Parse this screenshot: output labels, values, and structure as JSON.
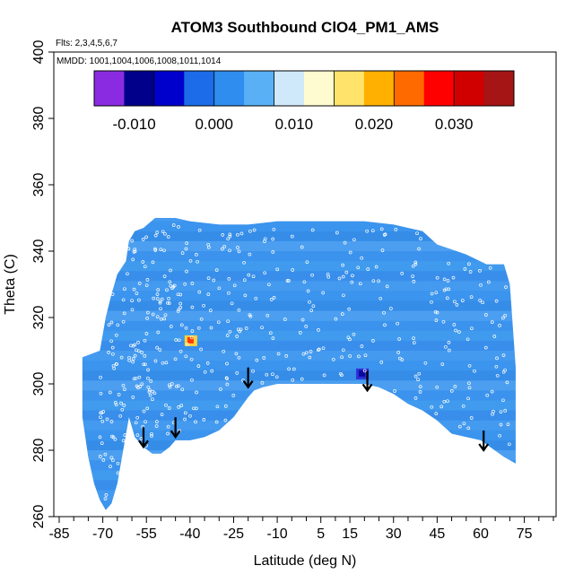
{
  "chart_data": {
    "type": "heatmap",
    "title": "ATOM3 Southbound ClO4_PM1_AMS",
    "subtitle_flights": "Flts: 2,3,4,5,6,7",
    "subtitle_dates": "MMDD: 1001,1004,1006,1008,1011,1014",
    "xlabel": "Latitude (deg N)",
    "ylabel": "Theta (C)",
    "xlim": [
      -85,
      85
    ],
    "ylim": [
      260,
      400
    ],
    "x_tick_labels": [
      "-85",
      "-70",
      "-55",
      "-40",
      "-25",
      "-10",
      "5",
      "15",
      "30",
      "45",
      "60",
      "75"
    ],
    "x_ticks": [
      -85,
      -70,
      -55,
      -40,
      -25,
      -10,
      5,
      15,
      30,
      45,
      60,
      75
    ],
    "y_tick_labels": [
      "260",
      "280",
      "300",
      "320",
      "340",
      "360",
      "380",
      "400"
    ],
    "y_ticks": [
      260,
      280,
      300,
      320,
      340,
      360,
      380,
      400
    ],
    "colorbar": {
      "range": [
        -0.015,
        0.0375
      ],
      "tick_labels": [
        "-0.010",
        "0.000",
        "0.010",
        "0.020",
        "0.030"
      ],
      "ticks": [
        -0.01,
        0.0,
        0.01,
        0.02,
        0.03
      ],
      "colors": [
        "#8a2be2",
        "#00008b",
        "#0000cd",
        "#1c6be8",
        "#2f8df0",
        "#5ab0f5",
        "#cfe9fb",
        "#fffbd0",
        "#ffe36a",
        "#ffb000",
        "#ff6a00",
        "#ff0000",
        "#d00000",
        "#a51515"
      ]
    },
    "field_background_value": 0.003,
    "field_color": "#3d96ee",
    "hotspots": [
      {
        "lat": -40,
        "theta": 313,
        "value": 0.03
      },
      {
        "lat": 19,
        "theta": 303,
        "value": -0.01
      }
    ],
    "tropopause_arrows": [
      {
        "lat": -56,
        "theta": 281
      },
      {
        "lat": -45,
        "theta": 284
      },
      {
        "lat": -20,
        "theta": 299
      },
      {
        "lat": 21,
        "theta": 298
      },
      {
        "lat": 61,
        "theta": 280
      }
    ]
  }
}
